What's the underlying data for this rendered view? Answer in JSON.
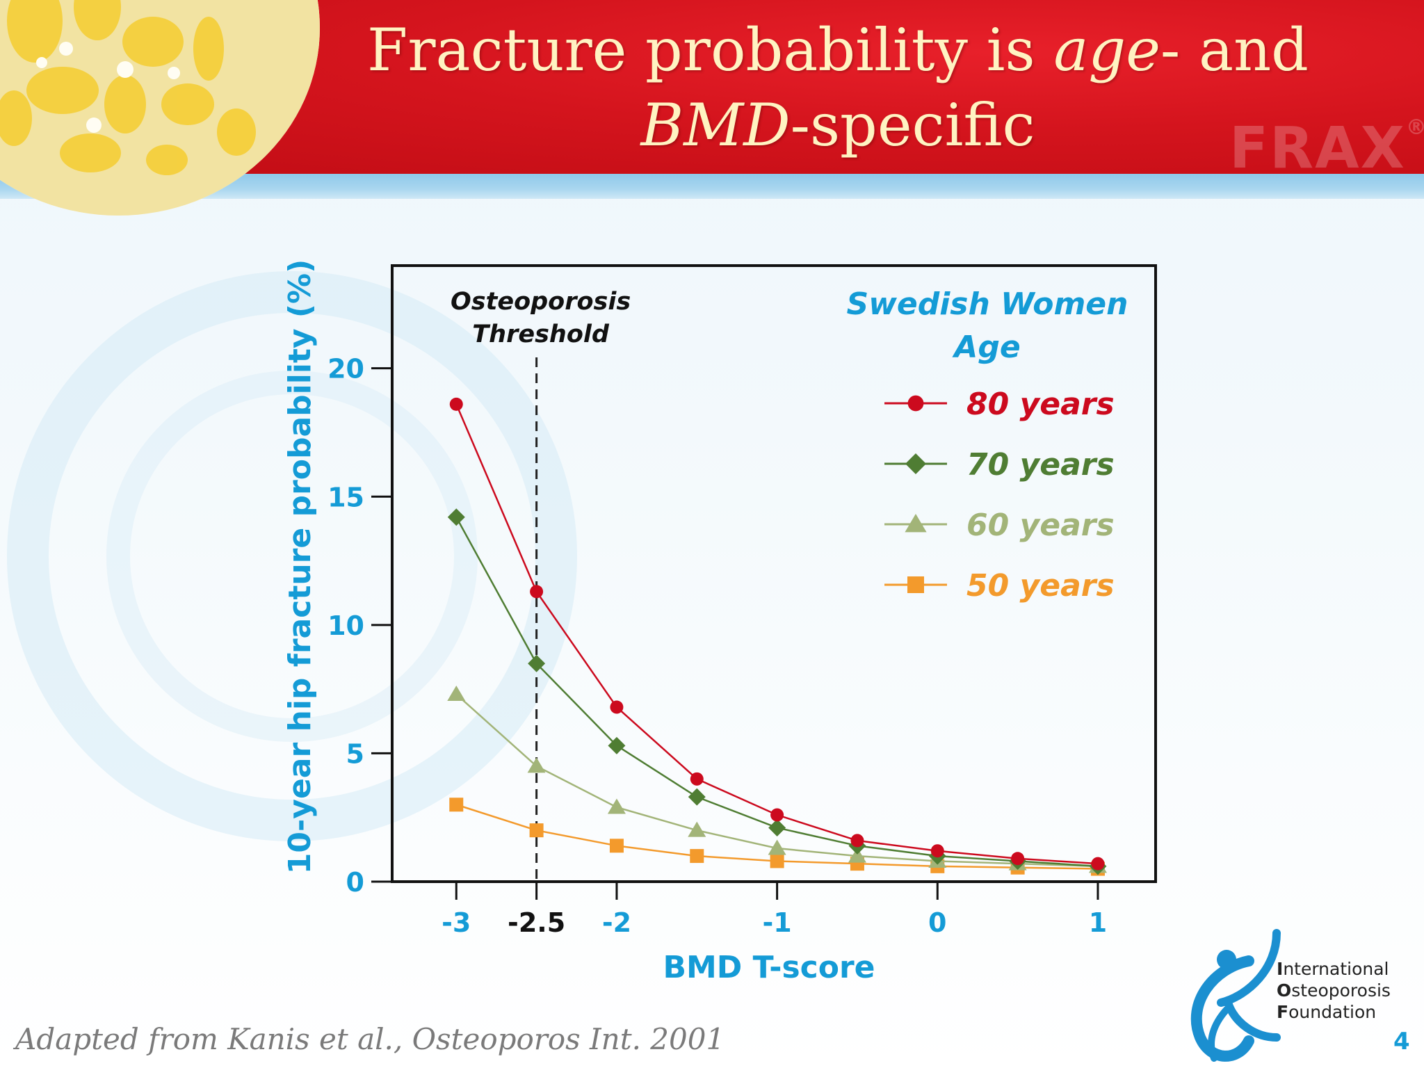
{
  "title": {
    "line1_pre": "Fracture probability is ",
    "line1_italic": "age",
    "line1_post": "- and",
    "line2_italic": "BMD",
    "line2_post": "-specific"
  },
  "frax_mark": "FRAX",
  "frax_reg": "®",
  "footer": {
    "citation": "Adapted from Kanis et al., Osteoporos Int. 2001",
    "page_number": "4",
    "org": {
      "line1_initial": "I",
      "line1_rest": "nternational",
      "line2_initial": "O",
      "line2_rest": "steoporosis",
      "line3_initial": "F",
      "line3_rest": "oundation"
    }
  },
  "colors": {
    "header_red": "#d4141d",
    "title_cream": "#fff3c2",
    "accent_blue": "#149bd6",
    "series_80": "#cc0a1e",
    "series_70": "#4f7d33",
    "series_60": "#a2b478",
    "series_50": "#f39a2c"
  },
  "chart_data": {
    "type": "line",
    "xlabel": "BMD T-score",
    "ylabel": "10-year hip fracture probability (%)",
    "xlim": [
      -3.4,
      1.36
    ],
    "ylim": [
      0,
      24
    ],
    "x_ticks": [
      -3,
      -2.5,
      -2,
      -1,
      0,
      1
    ],
    "x_tick_labels": [
      "-3",
      "-2.5",
      "-2",
      "-1",
      "0",
      "1"
    ],
    "y_ticks": [
      0,
      5,
      10,
      15,
      20
    ],
    "y_tick_labels": [
      "0",
      "5",
      "10",
      "15",
      "20"
    ],
    "grid": false,
    "legend_title": [
      "Swedish Women",
      "Age"
    ],
    "legend_position": "top-right",
    "annotation": {
      "lines": [
        "Osteoporosis",
        "Threshold"
      ],
      "x": -2.5,
      "style": "dashed-vertical-line"
    },
    "x": [
      -3,
      -2.5,
      -2,
      -1.5,
      -1,
      -0.5,
      0,
      0.5,
      1
    ],
    "series": [
      {
        "name": "80 years",
        "marker": "circle",
        "color": "#cc0a1e",
        "values": [
          18.6,
          11.3,
          6.8,
          4.0,
          2.6,
          1.6,
          1.2,
          0.9,
          0.7
        ]
      },
      {
        "name": "70 years",
        "marker": "diamond",
        "color": "#4f7d33",
        "values": [
          14.2,
          8.5,
          5.3,
          3.3,
          2.1,
          1.4,
          1.0,
          0.8,
          0.6
        ]
      },
      {
        "name": "60 years",
        "marker": "triangle",
        "color": "#a2b478",
        "values": [
          7.3,
          4.5,
          2.9,
          2.0,
          1.3,
          1.0,
          0.8,
          0.7,
          0.6
        ]
      },
      {
        "name": "50 years",
        "marker": "square",
        "color": "#f39a2c",
        "values": [
          3.0,
          2.0,
          1.4,
          1.0,
          0.8,
          0.7,
          0.6,
          0.55,
          0.5
        ]
      }
    ]
  }
}
